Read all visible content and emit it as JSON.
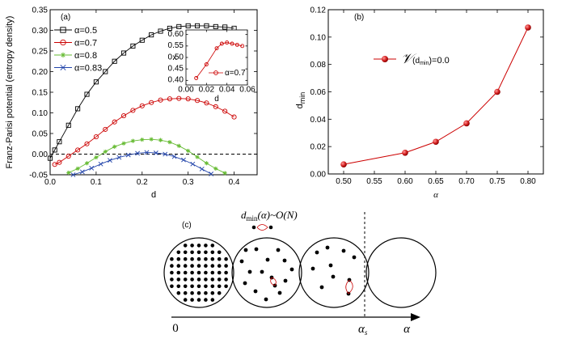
{
  "chart_data": [
    {
      "panel": "(a)",
      "type": "line",
      "xlabel": "d",
      "ylabel": "Franz-Parisi potential (entropy density)",
      "xlim": [
        0,
        0.45
      ],
      "ylim": [
        -0.05,
        0.35
      ],
      "xticks": [
        "0.0",
        "0.1",
        "0.2",
        "0.3",
        "0.4"
      ],
      "yticks": [
        "-0.05",
        "0.00",
        "0.05",
        "0.10",
        "0.15",
        "0.20",
        "0.25",
        "0.30",
        "0.35"
      ],
      "legend_position": "top-left",
      "reference_line": {
        "y": 0.0,
        "style": "dashed"
      },
      "series": [
        {
          "name": "α=0.5",
          "marker": "square",
          "color": "#000000",
          "x": [
            0.0,
            0.01,
            0.02,
            0.04,
            0.06,
            0.08,
            0.1,
            0.12,
            0.14,
            0.16,
            0.18,
            0.2,
            0.22,
            0.24,
            0.26,
            0.28,
            0.3,
            0.32,
            0.34,
            0.36,
            0.38,
            0.4
          ],
          "y": [
            -0.01,
            0.01,
            0.03,
            0.07,
            0.11,
            0.145,
            0.175,
            0.2,
            0.225,
            0.245,
            0.262,
            0.276,
            0.289,
            0.298,
            0.305,
            0.309,
            0.311,
            0.311,
            0.311,
            0.309,
            0.308,
            0.305
          ]
        },
        {
          "name": "α=0.7",
          "marker": "circle",
          "color": "#cc0000",
          "x": [
            0.01,
            0.02,
            0.04,
            0.06,
            0.08,
            0.1,
            0.12,
            0.14,
            0.16,
            0.18,
            0.2,
            0.22,
            0.24,
            0.26,
            0.28,
            0.3,
            0.32,
            0.34,
            0.36,
            0.38,
            0.4
          ],
          "y": [
            -0.025,
            -0.02,
            -0.005,
            0.01,
            0.025,
            0.042,
            0.06,
            0.078,
            0.093,
            0.106,
            0.117,
            0.125,
            0.131,
            0.134,
            0.135,
            0.134,
            0.13,
            0.124,
            0.115,
            0.104,
            0.09
          ]
        },
        {
          "name": "α=0.8",
          "marker": "star",
          "color": "#66bb33",
          "x": [
            0.04,
            0.06,
            0.08,
            0.1,
            0.12,
            0.14,
            0.16,
            0.18,
            0.2,
            0.22,
            0.24,
            0.26,
            0.28,
            0.3,
            0.32,
            0.34,
            0.36,
            0.38
          ],
          "y": [
            -0.045,
            -0.035,
            -0.022,
            -0.008,
            0.006,
            0.018,
            0.026,
            0.032,
            0.035,
            0.036,
            0.034,
            0.029,
            0.02,
            0.008,
            -0.007,
            -0.022,
            -0.035,
            -0.046
          ]
        },
        {
          "name": "α=0.83",
          "marker": "x",
          "color": "#2244aa",
          "x": [
            0.05,
            0.07,
            0.09,
            0.11,
            0.13,
            0.15,
            0.17,
            0.19,
            0.21,
            0.23,
            0.25,
            0.27,
            0.29,
            0.31,
            0.33,
            0.35
          ],
          "y": [
            -0.05,
            -0.043,
            -0.034,
            -0.024,
            -0.015,
            -0.008,
            -0.002,
            0.002,
            0.004,
            0.003,
            0.0,
            -0.006,
            -0.014,
            -0.024,
            -0.036,
            -0.048
          ]
        }
      ]
    },
    {
      "panel": "(a) inset",
      "type": "line",
      "xlabel": "d",
      "ylabel": "x",
      "xlim": [
        0.0,
        0.06
      ],
      "ylim": [
        0.38,
        0.62
      ],
      "xticks": [
        "0.00",
        "0.02",
        "0.04",
        "0.06"
      ],
      "yticks": [
        "0.40",
        "0.45",
        "0.50",
        "0.55",
        "0.60"
      ],
      "series": [
        {
          "name": "α=0.7",
          "marker": "circle",
          "color": "#cc0000",
          "x": [
            0.01,
            0.02,
            0.03,
            0.035,
            0.04,
            0.045,
            0.05,
            0.055
          ],
          "y": [
            0.41,
            0.47,
            0.54,
            0.56,
            0.565,
            0.56,
            0.555,
            0.55
          ]
        }
      ]
    },
    {
      "panel": "(b)",
      "type": "line",
      "xlabel": "α",
      "ylabel": "d_min",
      "xlim": [
        0.475,
        0.825
      ],
      "ylim": [
        0.0,
        0.12
      ],
      "xticks": [
        "0.50",
        "0.55",
        "0.60",
        "0.65",
        "0.70",
        "0.75",
        "0.80"
      ],
      "yticks": [
        "0.00",
        "0.02",
        "0.04",
        "0.06",
        "0.08",
        "0.10",
        "0.12"
      ],
      "legend_position": "top-left",
      "series": [
        {
          "name": "𝒱(d_min)=0.0",
          "marker": "sphere",
          "color": "#cc0000",
          "x": [
            0.5,
            0.6,
            0.65,
            0.7,
            0.75,
            0.8
          ],
          "y": [
            0.007,
            0.0155,
            0.0235,
            0.037,
            0.06,
            0.107
          ]
        }
      ]
    }
  ],
  "panel_c": {
    "label": "(c)",
    "formula": {
      "dmin": "d",
      "sub": "min",
      "rest": "(α)~O(N)"
    },
    "axis_start": "0",
    "alpha_s": "α",
    "alpha_s_sub": "s",
    "alpha_end": "α"
  }
}
